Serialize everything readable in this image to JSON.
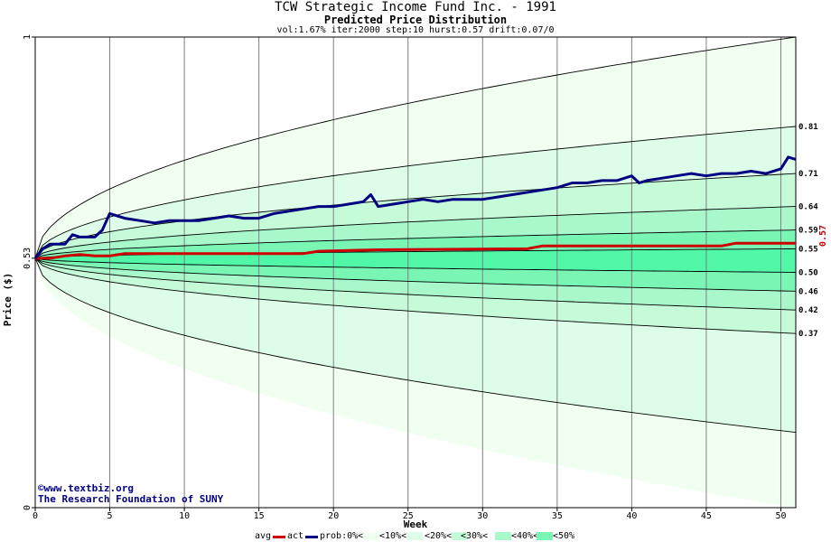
{
  "header": {
    "title": "TCW Strategic Income Fund Inc. - 1991",
    "subtitle": "Predicted Price Distribution",
    "params": "vol:1.67% iter:2000 step:10 hurst:0.57 drift:0.07/0"
  },
  "credits": {
    "url": "©www.textbiz.org",
    "org": "The Research Foundation of SUNY"
  },
  "legend": {
    "avg": "avg",
    "act": "act",
    "prob": "prob:0%<",
    "b10": "<10%<",
    "b20": "<20%<",
    "b30": "<30%<",
    "b40": "<40%<",
    "b50": "<50%"
  },
  "colors": {
    "avg": "#cc0000",
    "act": "#000080",
    "band0": "#f0fff0",
    "band10": "#ddfde8",
    "band20": "#c6fbd9",
    "band30": "#a8f8cc",
    "band40": "#7af6b4",
    "band50": "#4ff7a6",
    "grid": "#808080"
  },
  "chart_data": {
    "type": "area",
    "xlabel": "Week",
    "ylabel": "Price ($)",
    "xlim": [
      0,
      51
    ],
    "ylim": [
      0,
      1
    ],
    "xticks": [
      0,
      5,
      10,
      15,
      20,
      25,
      30,
      35,
      40,
      45,
      50
    ],
    "yticks": [
      "0",
      "0.53",
      "1"
    ],
    "current_price_label": "0.57",
    "right_labels": [
      "0.81",
      "0.71",
      "0.64",
      "0.59",
      "0.55",
      "0.50",
      "0.46",
      "0.42",
      "0.37"
    ],
    "start_price": 0.53,
    "percentile_curves_at_week_51": [
      0.0,
      0.16,
      0.37,
      0.42,
      0.46,
      0.5,
      0.55,
      0.59,
      0.64,
      0.71,
      0.81,
      1.0
    ],
    "outer_curve_levels": [
      0.16,
      1.0
    ],
    "series": [
      {
        "name": "avg",
        "x": [
          0,
          1,
          2,
          3,
          4,
          5,
          6,
          18,
          19,
          23,
          33,
          34,
          46,
          47,
          51
        ],
        "y": [
          0.53,
          0.53,
          0.535,
          0.538,
          0.535,
          0.535,
          0.54,
          0.54,
          0.545,
          0.548,
          0.55,
          0.556,
          0.556,
          0.562,
          0.562
        ]
      },
      {
        "name": "act",
        "x": [
          0,
          0.5,
          1,
          2,
          2.5,
          3,
          4,
          4.5,
          5,
          6,
          7,
          8,
          9,
          10,
          11,
          12,
          13,
          14,
          15,
          16,
          17,
          18,
          19,
          20,
          21,
          22,
          22.5,
          23,
          24,
          25,
          26,
          27,
          28,
          29,
          30,
          31,
          32,
          33,
          34,
          35,
          36,
          37,
          38,
          39,
          40,
          40.5,
          41,
          42,
          43,
          44,
          45,
          46,
          47,
          48,
          49,
          50,
          50.5,
          51
        ],
        "y": [
          0.53,
          0.55,
          0.56,
          0.56,
          0.58,
          0.575,
          0.575,
          0.59,
          0.625,
          0.615,
          0.61,
          0.605,
          0.61,
          0.61,
          0.61,
          0.615,
          0.62,
          0.615,
          0.615,
          0.625,
          0.63,
          0.635,
          0.64,
          0.64,
          0.645,
          0.65,
          0.665,
          0.64,
          0.645,
          0.65,
          0.655,
          0.65,
          0.655,
          0.655,
          0.655,
          0.66,
          0.665,
          0.67,
          0.675,
          0.68,
          0.69,
          0.69,
          0.695,
          0.695,
          0.705,
          0.69,
          0.695,
          0.7,
          0.705,
          0.71,
          0.705,
          0.71,
          0.71,
          0.715,
          0.71,
          0.72,
          0.745,
          0.74
        ]
      }
    ]
  }
}
